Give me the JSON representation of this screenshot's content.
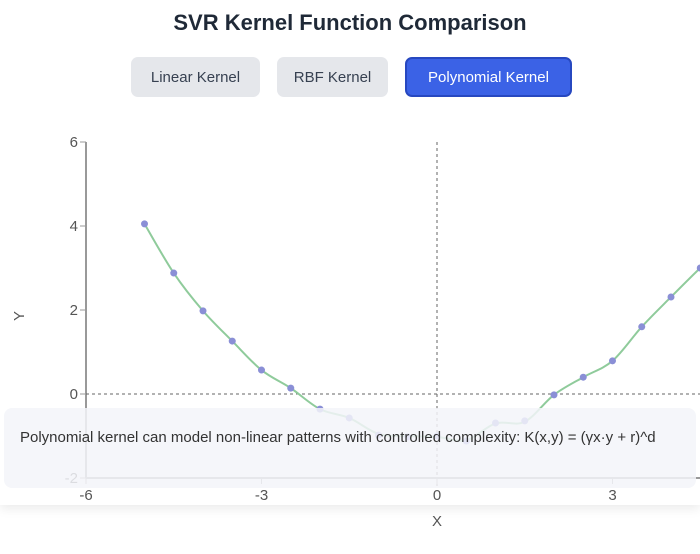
{
  "title": "SVR Kernel Function Comparison",
  "buttons": [
    {
      "label": "Linear Kernel",
      "active": false
    },
    {
      "label": "RBF Kernel",
      "active": false
    },
    {
      "label": "Polynomial Kernel",
      "active": true
    }
  ],
  "description": "Polynomial kernel can model non-linear patterns with controlled complexity: K(x,y) = (γx·y + r)^d",
  "colors": {
    "accent": "#3b62e6",
    "points": "#8a8fd6",
    "fit_line": "#8fcb9b"
  },
  "chart_data": {
    "type": "scatter",
    "xlabel": "X",
    "ylabel": "Y",
    "xlim": [
      -6,
      4.5
    ],
    "ylim": [
      -2,
      6
    ],
    "xticks": [
      -6,
      -3,
      0,
      3
    ],
    "yticks": [
      -2,
      0,
      2,
      4,
      6
    ],
    "reference_lines": {
      "x": 0,
      "y": 0
    },
    "points": {
      "x": [
        -5,
        -4.5,
        -4,
        -3.5,
        -3,
        -2.5,
        -2,
        -1.5,
        -1,
        -0.5,
        0,
        0.5,
        1,
        1.5,
        2,
        2.5,
        3,
        3.5,
        4,
        4.5
      ],
      "y": [
        4.05,
        2.88,
        1.98,
        1.26,
        0.57,
        0.14,
        -0.36,
        -0.57,
        -0.98,
        -1.02,
        -1.0,
        -1.12,
        -0.69,
        -0.64,
        -0.02,
        0.4,
        0.79,
        1.6,
        2.31,
        3.0
      ]
    },
    "fit": {
      "x": [
        -5,
        -4.5,
        -4,
        -3.5,
        -3,
        -2.5,
        -2,
        -1.5,
        -1,
        -0.5,
        0,
        0.5,
        1,
        1.5,
        2,
        2.5,
        3,
        3.5,
        4,
        4.5,
        4.6
      ],
      "y": [
        4.05,
        2.88,
        1.98,
        1.26,
        0.57,
        0.14,
        -0.36,
        -0.57,
        -0.95,
        -1.0,
        -1.02,
        -1.1,
        -0.7,
        -0.66,
        -0.02,
        0.4,
        0.79,
        1.6,
        2.31,
        3.0,
        3.1
      ]
    }
  }
}
